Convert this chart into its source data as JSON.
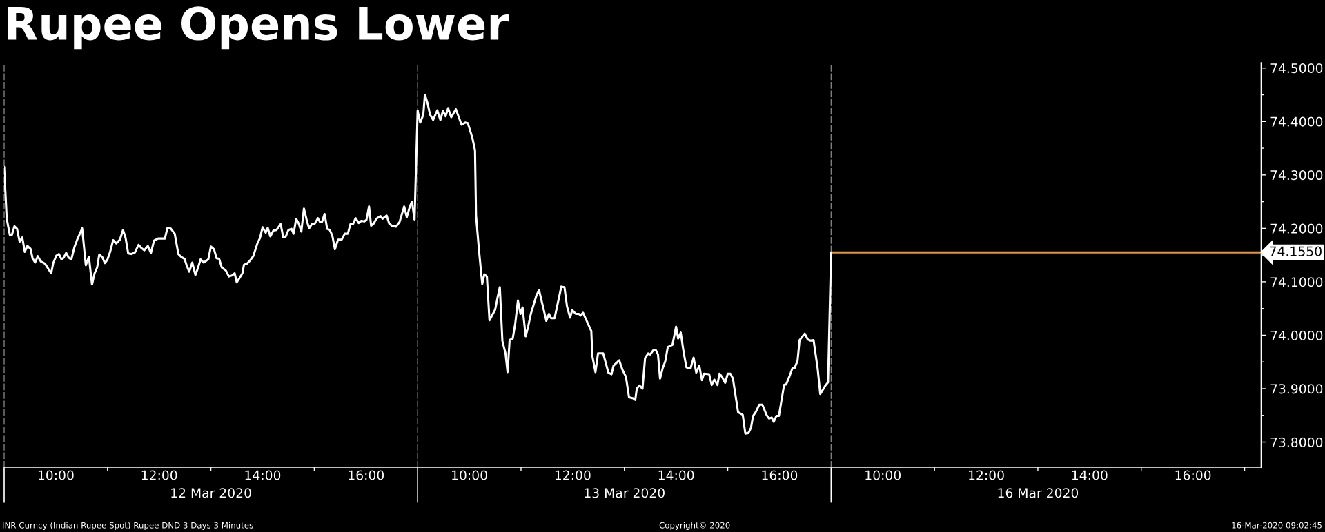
{
  "chart_data": [
    {
      "type": "line",
      "title": "Rupee Opens Lower",
      "xlabel": "12 Mar 2020",
      "xlim": [
        9,
        17
      ],
      "xticks": [
        {
          "value": 9,
          "label": null
        },
        {
          "value": 10,
          "label": "10:00"
        },
        {
          "value": 11,
          "label": null
        },
        {
          "value": 12,
          "label": "12:00"
        },
        {
          "value": 13,
          "label": null
        },
        {
          "value": 14,
          "label": "14:00"
        },
        {
          "value": 15,
          "label": null
        },
        {
          "value": 16,
          "label": "16:00"
        }
      ],
      "ylim": [
        73.753,
        74.51
      ],
      "tick_labels": "x",
      "series": [
        {
          "color": "#ffffff",
          "x": [
            9,
            9.05,
            9.11,
            9.15,
            9.2,
            9.25,
            9.3,
            9.35,
            9.4,
            9.45,
            9.51,
            9.55,
            9.6,
            9.65,
            9.71,
            9.79,
            9.91,
            9.95,
            10.01,
            10.06,
            10.11,
            10.15,
            10.2,
            10.25,
            10.3,
            10.36,
            10.41,
            10.51,
            10.58,
            10.64,
            10.7,
            10.75,
            10.8,
            10.84,
            10.9,
            10.95,
            11,
            11.05,
            11.11,
            11.17,
            11.24,
            11.3,
            11.35,
            11.4,
            11.46,
            11.53,
            11.6,
            11.66,
            11.71,
            11.78,
            11.84,
            11.9,
            11.98,
            12.11,
            12.16,
            12.22,
            12.3,
            12.37,
            12.42,
            12.49,
            12.53,
            12.58,
            12.64,
            12.7,
            12.75,
            12.8,
            12.86,
            12.95,
            13,
            13.06,
            13.11,
            13.16,
            13.21,
            13.29,
            13.35,
            13.41,
            13.46,
            13.5,
            13.56,
            13.61,
            13.64,
            13.7,
            13.76,
            13.82,
            13.9,
            13.95,
            14,
            14.06,
            14.1,
            14.15,
            14.21,
            14.27,
            14.35,
            14.4,
            14.45,
            14.5,
            14.56,
            14.6,
            14.65,
            14.7,
            14.75,
            14.8,
            14.86,
            14.9,
            14.96,
            15.01,
            15.07,
            15.11,
            15.15,
            15.2,
            15.25,
            15.3,
            15.35,
            15.4,
            15.46,
            15.53,
            15.59,
            15.65,
            15.7,
            15.75,
            15.8,
            15.86,
            15.91,
            15.97,
            16.01,
            16.06,
            16.1,
            16.15,
            16.2,
            16.28,
            16.32,
            16.4,
            16.45,
            16.5,
            16.58,
            16.65,
            16.74,
            16.79,
            16.85,
            16.89,
            16.94
          ],
          "values": [
            74.315,
            74.218,
            74.188,
            74.188,
            74.204,
            74.199,
            74.175,
            74.183,
            74.156,
            74.167,
            74.162,
            74.144,
            74.136,
            74.148,
            74.138,
            74.134,
            74.116,
            74.135,
            74.149,
            74.152,
            74.142,
            74.145,
            74.154,
            74.145,
            74.142,
            74.165,
            74.178,
            74.2,
            74.131,
            74.147,
            74.095,
            74.116,
            74.127,
            74.151,
            74.146,
            74.135,
            74.142,
            74.156,
            74.178,
            74.172,
            74.179,
            74.197,
            74.182,
            74.153,
            74.152,
            74.155,
            74.169,
            74.163,
            74.159,
            74.167,
            74.154,
            74.177,
            74.181,
            74.181,
            74.201,
            74.2,
            74.19,
            74.152,
            74.147,
            74.143,
            74.131,
            74.119,
            74.136,
            74.113,
            74.126,
            74.142,
            74.136,
            74.142,
            74.166,
            74.161,
            74.144,
            74.143,
            74.127,
            74.121,
            74.11,
            74.112,
            74.116,
            74.099,
            74.108,
            74.116,
            74.132,
            74.134,
            74.14,
            74.148,
            74.172,
            74.182,
            74.202,
            74.192,
            74.201,
            74.185,
            74.196,
            74.197,
            74.208,
            74.183,
            74.185,
            74.197,
            74.199,
            74.19,
            74.218,
            74.209,
            74.194,
            74.237,
            74.213,
            74.2,
            74.209,
            74.209,
            74.219,
            74.212,
            74.212,
            74.227,
            74.199,
            74.197,
            74.186,
            74.161,
            74.179,
            74.179,
            74.19,
            74.19,
            74.208,
            74.208,
            74.219,
            74.21,
            74.214,
            74.213,
            74.216,
            74.241,
            74.205,
            74.209,
            74.218,
            74.223,
            74.218,
            74.224,
            74.209,
            74.205,
            74.203,
            74.212,
            74.241,
            74.221,
            74.241,
            74.25,
            74.217
          ]
        }
      ]
    },
    {
      "type": "line",
      "xlabel": "13 Mar 2020",
      "xlim": [
        9,
        17
      ],
      "xticks": [
        {
          "value": 9,
          "label": null
        },
        {
          "value": 10,
          "label": "10:00"
        },
        {
          "value": 11,
          "label": null
        },
        {
          "value": 12,
          "label": "12:00"
        },
        {
          "value": 13,
          "label": null
        },
        {
          "value": 14,
          "label": "14:00"
        },
        {
          "value": 15,
          "label": null
        },
        {
          "value": 16,
          "label": "16:00"
        }
      ],
      "ylim": [
        73.753,
        74.51
      ],
      "tick_labels": "x",
      "series": [
        {
          "color": "#ffffff",
          "x": [
            9,
            9.05,
            9.11,
            9.14,
            9.19,
            9.24,
            9.3,
            9.38,
            9.44,
            9.49,
            9.54,
            9.59,
            9.65,
            9.74,
            9.85,
            9.92,
            9.97,
            10,
            10.06,
            10.11,
            10.13,
            10.19,
            10.25,
            10.29,
            10.34,
            10.39,
            10.5,
            10.55,
            10.59,
            10.64,
            10.7,
            10.74,
            10.78,
            10.84,
            10.89,
            10.94,
            10.99,
            11.03,
            11.09,
            11.14,
            11.19,
            11.3,
            11.35,
            11.49,
            11.54,
            11.58,
            11.65,
            11.78,
            11.84,
            11.89,
            11.95,
            11.99,
            12.06,
            12.12,
            12.15,
            12.2,
            12.36,
            12.38,
            12.44,
            12.49,
            12.59,
            12.69,
            12.75,
            12.79,
            12.9,
            12.96,
            13.03,
            13.09,
            13.17,
            13.21,
            13.24,
            13.29,
            13.35,
            13.4,
            13.46,
            13.5,
            13.56,
            13.61,
            13.65,
            13.69,
            13.74,
            13.79,
            13.84,
            13.93,
            14,
            14.04,
            14.09,
            14.15,
            14.2,
            14.28,
            14.34,
            14.39,
            14.45,
            14.5,
            14.54,
            14.64,
            14.69,
            14.74,
            14.8,
            14.84,
            14.89,
            14.95,
            15,
            15.05,
            15.1,
            15.2,
            15.29,
            15.34,
            15.4,
            15.45,
            15.49,
            15.54,
            15.61,
            15.67,
            15.75,
            15.8,
            15.85,
            15.89,
            15.94,
            15.99,
            16.09,
            16.13,
            16.19,
            16.25,
            16.29,
            16.35,
            16.39,
            16.49,
            16.55,
            16.6,
            16.66,
            16.74,
            16.79,
            16.89,
            16.94
          ],
          "values": [
            74.42,
            74.398,
            74.413,
            74.45,
            74.435,
            74.413,
            74.403,
            74.421,
            74.403,
            74.42,
            74.41,
            74.425,
            74.408,
            74.423,
            74.394,
            74.398,
            74.397,
            74.388,
            74.369,
            74.346,
            74.224,
            74.156,
            74.096,
            74.114,
            74.11,
            74.028,
            74.048,
            74.072,
            74.09,
            73.989,
            73.966,
            73.931,
            73.991,
            73.994,
            74.023,
            74.065,
            74.04,
            74.052,
            73.998,
            74.017,
            74.04,
            74.075,
            74.084,
            74.027,
            74.04,
            74.032,
            74.032,
            74.091,
            74.09,
            74.054,
            74.033,
            74.047,
            74.04,
            74.04,
            74.037,
            74.042,
            74.008,
            73.961,
            73.931,
            73.966,
            73.966,
            73.93,
            73.927,
            73.943,
            73.953,
            73.936,
            73.922,
            73.884,
            73.882,
            73.879,
            73.9,
            73.906,
            73.9,
            73.957,
            73.966,
            73.964,
            73.972,
            73.972,
            73.964,
            73.919,
            73.938,
            73.951,
            73.978,
            73.982,
            74.016,
            73.994,
            74.005,
            73.966,
            73.94,
            73.938,
            73.958,
            73.93,
            73.943,
            73.916,
            73.928,
            73.927,
            73.907,
            73.917,
            73.907,
            73.928,
            73.922,
            73.911,
            73.928,
            73.928,
            73.919,
            73.856,
            73.851,
            73.816,
            73.817,
            73.827,
            73.849,
            73.856,
            73.87,
            73.87,
            73.851,
            73.844,
            73.846,
            73.838,
            73.849,
            73.849,
            73.907,
            73.908,
            73.922,
            73.938,
            73.938,
            73.952,
            73.991,
            74.003,
            73.992,
            73.99,
            73.991,
            73.937,
            73.89,
            73.906,
            73.912
          ]
        }
      ]
    },
    {
      "type": "line",
      "xlabel": "16 Mar 2020",
      "annotations": [
        "INR Curncy (Indian Rupee Spot) Rupee DND 3 Days 3 Minutes",
        "Copyright© 2020",
        "16-Mar-2020 09:02:45"
      ],
      "xlim": [
        9,
        17.32
      ],
      "xticks": [
        {
          "value": 9,
          "label": null
        },
        {
          "value": 10,
          "label": "10:00"
        },
        {
          "value": 11,
          "label": null
        },
        {
          "value": 12,
          "label": "12:00"
        },
        {
          "value": 13,
          "label": null
        },
        {
          "value": 14,
          "label": "14:00"
        },
        {
          "value": 15,
          "label": null
        },
        {
          "value": 16,
          "label": "16:00"
        },
        {
          "value": 17,
          "label": null
        }
      ],
      "ylim": [
        73.753,
        74.51
      ],
      "yticks": [
        {
          "value": 73.8,
          "label": "73.8000"
        },
        {
          "value": 73.85,
          "label": null
        },
        {
          "value": 73.9,
          "label": "73.9000"
        },
        {
          "value": 73.95,
          "label": null
        },
        {
          "value": 74.0,
          "label": "74.0000"
        },
        {
          "value": 74.05,
          "label": null
        },
        {
          "value": 74.1,
          "label": "74.1000"
        },
        {
          "value": 74.15,
          "label": null
        },
        {
          "value": 74.2,
          "label": "74.2000"
        },
        {
          "value": 74.25,
          "label": null
        },
        {
          "value": 74.3,
          "label": "74.3000"
        },
        {
          "value": 74.35,
          "label": null
        },
        {
          "value": 74.4,
          "label": "74.4000"
        },
        {
          "value": 74.45,
          "label": null
        },
        {
          "value": 74.5,
          "label": "74.5000"
        }
      ],
      "series": [
        {
          "color": "#e8962e",
          "x": [
            9,
            17.32
          ],
          "values": [
            74.155,
            74.155
          ],
          "value_labels": [
            null,
            "74.1550"
          ]
        }
      ]
    }
  ]
}
